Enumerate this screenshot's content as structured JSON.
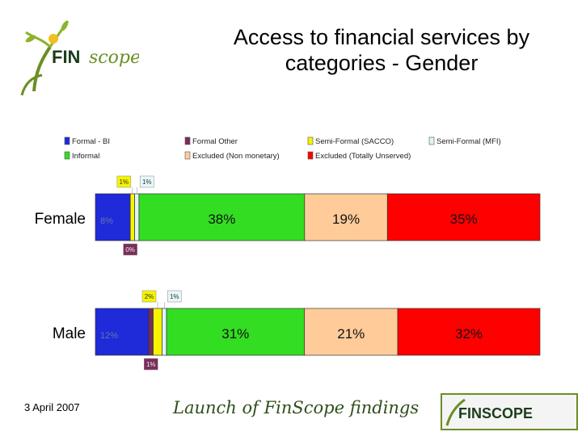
{
  "slide": {
    "title_line1": "Access to financial services by",
    "title_line2": "categories - Gender",
    "date": "3 April 2007",
    "tagline": "Launch of FinScope findings"
  },
  "logos": {
    "top_text_fin": "FIN",
    "top_text_scope": "scope",
    "bottom_text": "FINSCOPE"
  },
  "chart_data": {
    "type": "bar",
    "orientation": "horizontal",
    "stacked": true,
    "percent_axis": true,
    "categories": [
      "Female",
      "Male"
    ],
    "series": [
      {
        "name": "Formal - BI",
        "color": "#1f2ad9",
        "values": [
          8,
          12
        ],
        "labels": [
          "8%",
          "12%"
        ]
      },
      {
        "name": "Formal Other",
        "color": "#7b2d5a",
        "values": [
          0,
          1
        ],
        "labels": [
          "0%",
          "1%"
        ]
      },
      {
        "name": "Semi-Formal (SACCO)",
        "color": "#f5f500",
        "values": [
          1,
          2
        ],
        "labels": [
          "1%",
          "2%"
        ]
      },
      {
        "name": "Semi-Formal (MFI)",
        "color": "#e0f4f8",
        "values": [
          1,
          1
        ],
        "labels": [
          "1%",
          "1%"
        ]
      },
      {
        "name": "Informal",
        "color": "#33dd22",
        "values": [
          38,
          31
        ],
        "labels": [
          "38%",
          "31%"
        ]
      },
      {
        "name": "Excluded (Non monetary)",
        "color": "#ffcc99",
        "values": [
          19,
          21
        ],
        "labels": [
          "19%",
          "21%"
        ]
      },
      {
        "name": "Excluded (Totally Unserved)",
        "color": "#ff0000",
        "values": [
          35,
          32
        ],
        "labels": [
          "35%",
          "32%"
        ]
      }
    ],
    "legend_position": "top"
  }
}
